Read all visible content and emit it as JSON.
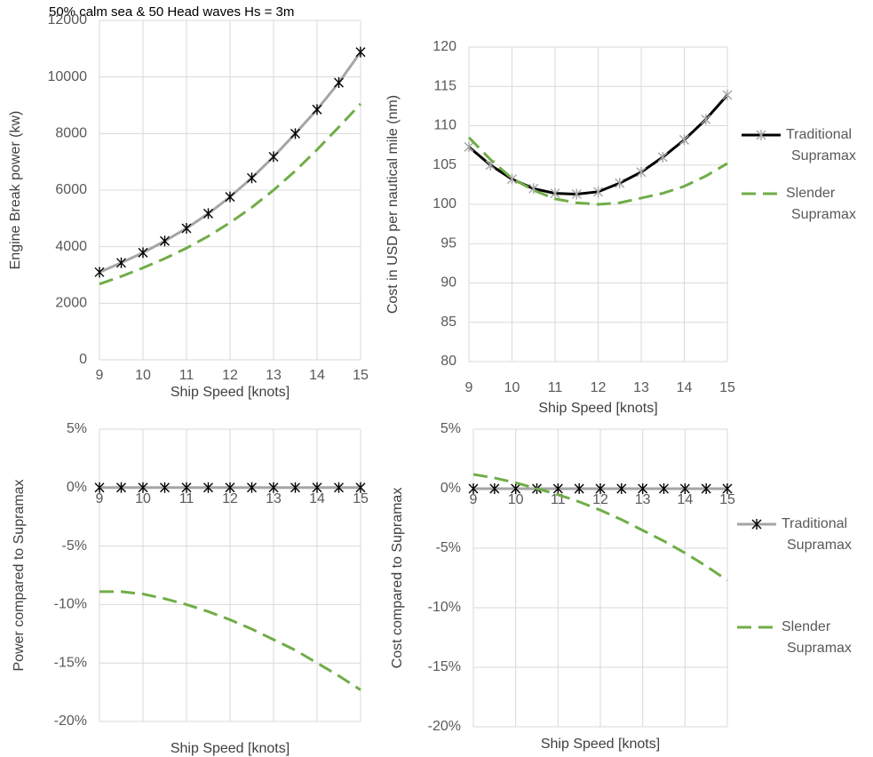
{
  "chart_data": [
    {
      "type": "line",
      "title": "50% calm sea & 50 Head waves Hs = 3m",
      "x_label": "Ship Speed [knots]",
      "y_label": "Engine Break power (kw)",
      "x": [
        9,
        9.5,
        10,
        10.5,
        11,
        11.5,
        12,
        12.5,
        13,
        13.5,
        14,
        14.5,
        15
      ],
      "xlim": [
        9,
        15
      ],
      "xticks": [
        9,
        10,
        11,
        12,
        13,
        14,
        15
      ],
      "ylim": [
        0,
        12000
      ],
      "yticks": [
        0,
        2000,
        4000,
        6000,
        8000,
        10000,
        12000
      ],
      "grid": true,
      "series": [
        {
          "color": "#a5a5a5",
          "marker": "asterisk",
          "marker_color": "#000000",
          "values": [
            3100,
            3430,
            3790,
            4200,
            4650,
            5170,
            5760,
            6430,
            7180,
            8000,
            8850,
            9800,
            10880
          ]
        },
        {
          "color": "#70ad47",
          "dash": true,
          "values": [
            2680,
            2950,
            3250,
            3580,
            3950,
            4370,
            4850,
            5390,
            6000,
            6680,
            7430,
            8230,
            9050
          ]
        }
      ]
    },
    {
      "type": "line",
      "x_label": "Ship Speed [knots]",
      "y_label": "Cost in USD per nautical mile (nm)",
      "x": [
        9,
        9.5,
        10,
        10.5,
        11,
        11.5,
        12,
        12.5,
        13,
        13.5,
        14,
        14.5,
        15
      ],
      "xlim": [
        9,
        15
      ],
      "xticks": [
        9,
        10,
        11,
        12,
        13,
        14,
        15
      ],
      "ylim": [
        80,
        120
      ],
      "yticks": [
        80,
        85,
        90,
        95,
        100,
        105,
        110,
        115,
        120
      ],
      "grid": true,
      "legend": "right",
      "series": [
        {
          "name": "Traditional Supramax",
          "color": "#000000",
          "marker": "asterisk",
          "marker_color": "#a5a5a5",
          "values": [
            107.3,
            105,
            103.2,
            102,
            101.4,
            101.3,
            101.6,
            102.7,
            104.1,
            106,
            108.2,
            110.8,
            113.9
          ]
        },
        {
          "name": "Slender Supramax",
          "color": "#70ad47",
          "dash": true,
          "values": [
            108.5,
            105.7,
            103.3,
            101.8,
            100.7,
            100.2,
            100,
            100.2,
            100.8,
            101.4,
            102.3,
            103.6,
            105.2
          ]
        }
      ]
    },
    {
      "type": "line",
      "x_label": "Ship Speed [knots]",
      "y_label": "Power compared to Supramax",
      "x": [
        9,
        9.5,
        10,
        10.5,
        11,
        11.5,
        12,
        12.5,
        13,
        13.5,
        14,
        14.5,
        15
      ],
      "xlim": [
        9,
        15
      ],
      "xticks": [
        9,
        10,
        11,
        12,
        13,
        14,
        15
      ],
      "ylim": [
        -20,
        5
      ],
      "yticks": [
        {
          "value": -20,
          "label": "-20%"
        },
        {
          "value": -15,
          "label": "-15%"
        },
        {
          "value": -10,
          "label": "-10%"
        },
        {
          "value": -5,
          "label": "-5%"
        },
        {
          "value": 0,
          "label": "0%"
        },
        {
          "value": 5,
          "label": "5%"
        }
      ],
      "grid": true,
      "series": [
        {
          "color": "#a5a5a5",
          "marker": "asterisk",
          "marker_color": "#000000",
          "values": [
            0,
            0,
            0,
            0,
            0,
            0,
            0,
            0,
            0,
            0,
            0,
            0,
            0
          ]
        },
        {
          "color": "#70ad47",
          "dash": true,
          "values": [
            -8.9,
            -8.9,
            -9.1,
            -9.5,
            -10,
            -10.6,
            -11.3,
            -12.1,
            -13,
            -13.9,
            -15,
            -16.1,
            -17.3
          ]
        }
      ]
    },
    {
      "type": "line",
      "x_label": "Ship Speed [knots]",
      "y_label": "Cost  compared to Supramax",
      "x": [
        9,
        9.5,
        10,
        10.5,
        11,
        11.5,
        12,
        12.5,
        13,
        13.5,
        14,
        14.5,
        15
      ],
      "xlim": [
        9,
        15
      ],
      "xticks": [
        9,
        10,
        11,
        12,
        13,
        14,
        15
      ],
      "ylim": [
        -20,
        5
      ],
      "yticks": [
        {
          "value": -20,
          "label": "-20%"
        },
        {
          "value": -15,
          "label": "-15%"
        },
        {
          "value": -10,
          "label": "-10%"
        },
        {
          "value": -5,
          "label": "-5%"
        },
        {
          "value": 0,
          "label": "0%"
        },
        {
          "value": 5,
          "label": "5%"
        }
      ],
      "grid": true,
      "legend": "right",
      "series": [
        {
          "name": "Traditional Supramax",
          "color": "#a5a5a5",
          "marker": "asterisk",
          "marker_color": "#000000",
          "values": [
            0,
            0,
            0,
            0,
            0,
            0,
            0,
            0,
            0,
            0,
            0,
            0,
            0
          ]
        },
        {
          "name": "Slender Supramax",
          "color": "#70ad47",
          "dash": true,
          "values": [
            1.2,
            0.9,
            0.5,
            0,
            -0.5,
            -1.1,
            -1.8,
            -2.6,
            -3.5,
            -4.4,
            -5.4,
            -6.5,
            -7.7
          ]
        }
      ]
    }
  ]
}
